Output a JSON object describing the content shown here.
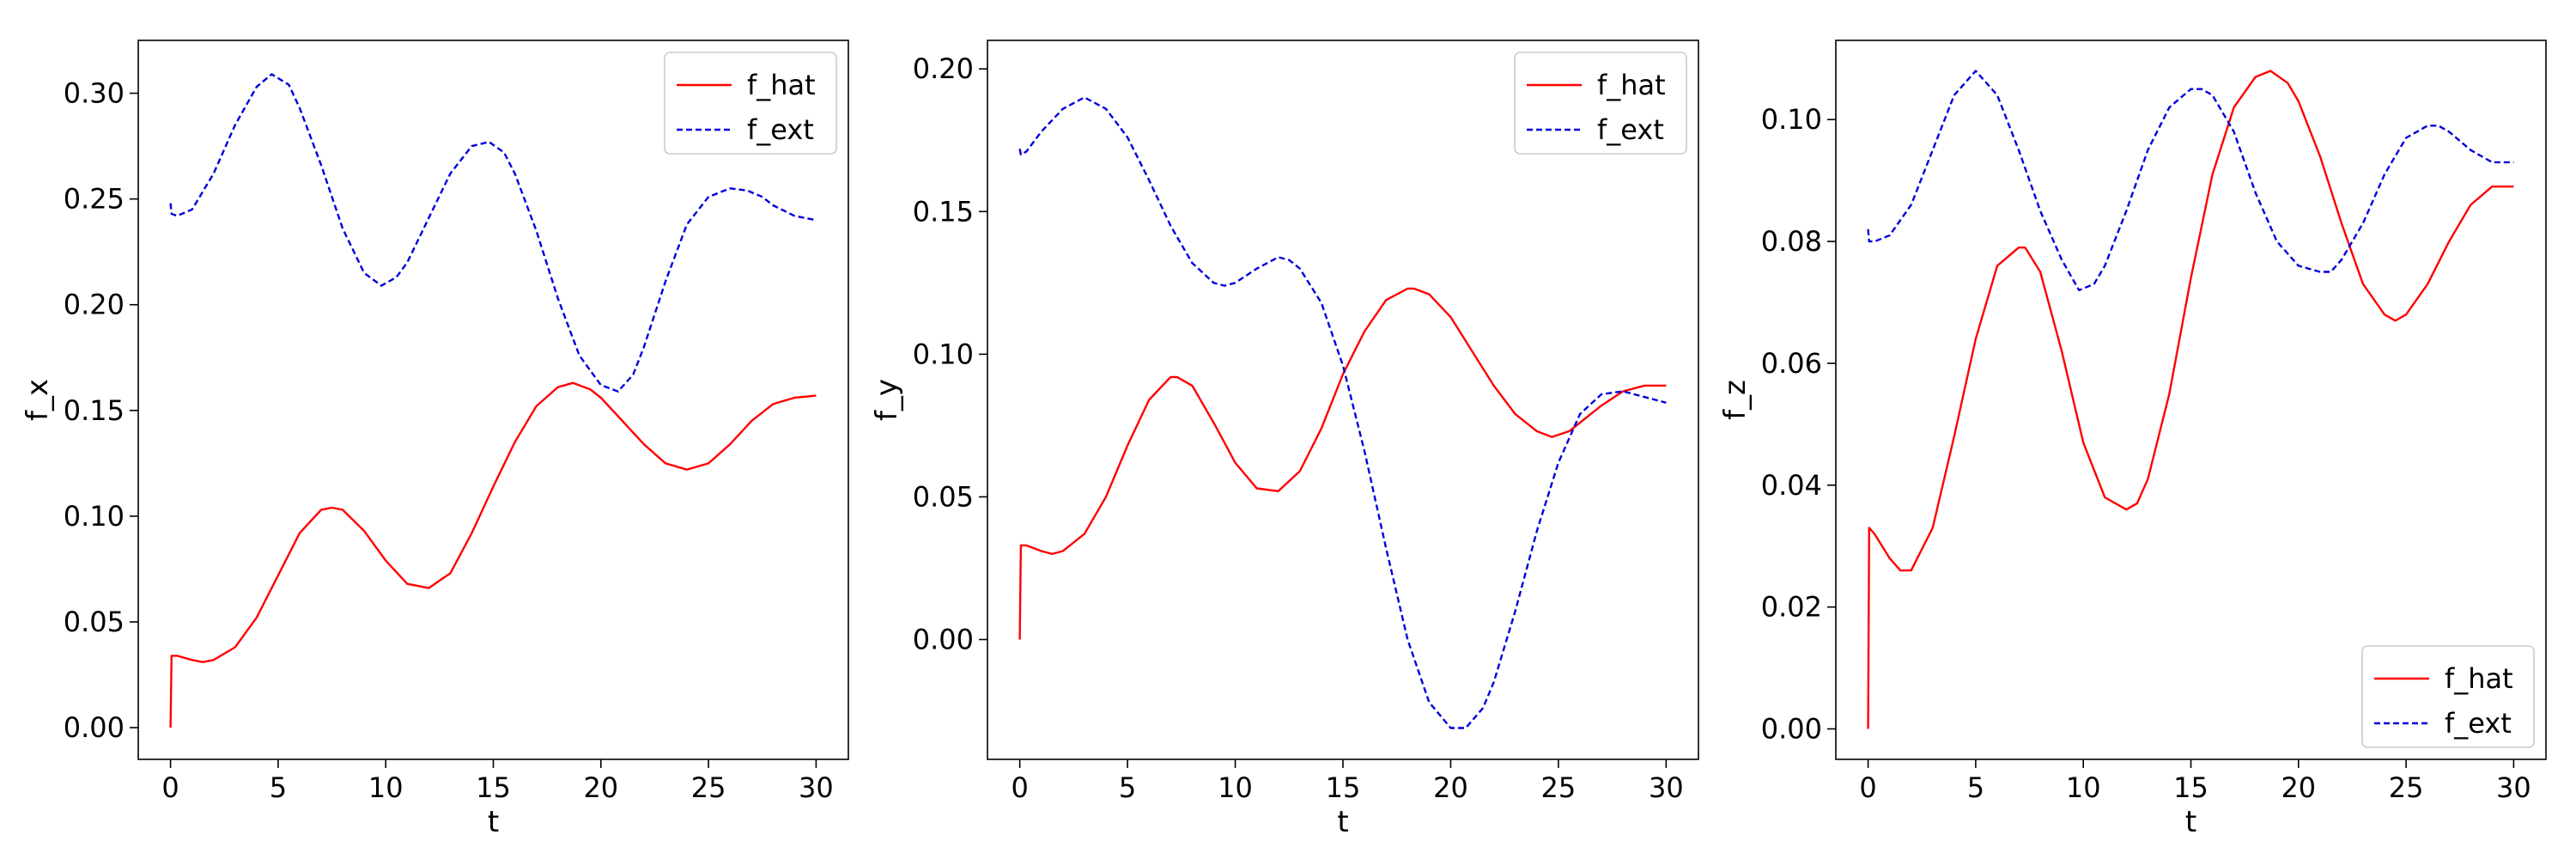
{
  "chart_data": [
    {
      "type": "line",
      "xlabel": "t",
      "ylabel": "f_x",
      "xlim": [
        -1.5,
        31.5
      ],
      "ylim": [
        -0.015,
        0.325
      ],
      "xticks": [
        0,
        5,
        10,
        15,
        20,
        25,
        30
      ],
      "yticks": [
        0.0,
        0.05,
        0.1,
        0.15,
        0.2,
        0.25,
        0.3
      ],
      "ytick_labels": [
        "0.00",
        "0.05",
        "0.10",
        "0.15",
        "0.20",
        "0.25",
        "0.30"
      ],
      "legend": {
        "position": "top-right"
      },
      "grid": false,
      "series": [
        {
          "name": "f_hat",
          "color": "#ff0000",
          "style": "solid",
          "x": [
            0,
            0.05,
            0.3,
            1,
            1.5,
            2,
            3,
            4,
            5,
            6,
            7,
            7.5,
            8,
            9,
            10,
            11,
            12,
            13,
            14,
            15,
            16,
            17,
            18,
            18.7,
            19.5,
            20,
            21,
            22,
            23,
            24,
            25,
            26,
            27,
            28,
            29,
            30
          ],
          "y": [
            0.0,
            0.034,
            0.034,
            0.032,
            0.031,
            0.032,
            0.038,
            0.052,
            0.072,
            0.092,
            0.103,
            0.104,
            0.103,
            0.093,
            0.079,
            0.068,
            0.066,
            0.073,
            0.092,
            0.114,
            0.135,
            0.152,
            0.161,
            0.163,
            0.16,
            0.156,
            0.145,
            0.134,
            0.125,
            0.122,
            0.125,
            0.134,
            0.145,
            0.153,
            0.156,
            0.157
          ]
        },
        {
          "name": "f_ext",
          "color": "#0000dd",
          "style": "dashed",
          "x": [
            0,
            0.05,
            0.3,
            1,
            2,
            3,
            4,
            4.7,
            5.5,
            6,
            7,
            8,
            9,
            9.8,
            10.5,
            11,
            12,
            13,
            14,
            14.8,
            15.5,
            16,
            17,
            18,
            19,
            20,
            20.8,
            21.5,
            22,
            23,
            24,
            25,
            26,
            26.8,
            27.5,
            28,
            29,
            30
          ],
          "y": [
            0.248,
            0.243,
            0.242,
            0.245,
            0.262,
            0.285,
            0.303,
            0.309,
            0.304,
            0.293,
            0.266,
            0.236,
            0.215,
            0.209,
            0.213,
            0.22,
            0.241,
            0.262,
            0.275,
            0.277,
            0.272,
            0.262,
            0.235,
            0.203,
            0.176,
            0.162,
            0.159,
            0.167,
            0.18,
            0.211,
            0.238,
            0.251,
            0.255,
            0.254,
            0.251,
            0.247,
            0.242,
            0.24
          ]
        }
      ]
    },
    {
      "type": "line",
      "xlabel": "t",
      "ylabel": "f_y",
      "xlim": [
        -1.5,
        31.5
      ],
      "ylim": [
        -0.042,
        0.21
      ],
      "xticks": [
        0,
        5,
        10,
        15,
        20,
        25,
        30
      ],
      "yticks": [
        0.0,
        0.05,
        0.1,
        0.15,
        0.2
      ],
      "ytick_labels": [
        "0.00",
        "0.05",
        "0.10",
        "0.15",
        "0.20"
      ],
      "legend": {
        "position": "top-right"
      },
      "grid": false,
      "series": [
        {
          "name": "f_hat",
          "color": "#ff0000",
          "style": "solid",
          "x": [
            0,
            0.05,
            0.3,
            1,
            1.5,
            2,
            3,
            4,
            5,
            6,
            7,
            7.3,
            8,
            9,
            10,
            11,
            12,
            13,
            14,
            15,
            16,
            17,
            18,
            18.3,
            19,
            20,
            21,
            22,
            23,
            24,
            24.7,
            25.5,
            26,
            27,
            28,
            29,
            30
          ],
          "y": [
            0.0,
            0.033,
            0.033,
            0.031,
            0.03,
            0.031,
            0.037,
            0.05,
            0.068,
            0.084,
            0.092,
            0.092,
            0.089,
            0.076,
            0.062,
            0.053,
            0.052,
            0.059,
            0.074,
            0.093,
            0.108,
            0.119,
            0.123,
            0.123,
            0.121,
            0.113,
            0.101,
            0.089,
            0.079,
            0.073,
            0.071,
            0.073,
            0.076,
            0.082,
            0.087,
            0.089,
            0.089
          ]
        },
        {
          "name": "f_ext",
          "color": "#0000dd",
          "style": "dashed",
          "x": [
            0,
            0.05,
            0.3,
            1,
            2,
            3,
            4,
            5,
            6,
            7,
            8,
            9,
            9.5,
            10,
            11,
            12,
            12.5,
            13,
            14,
            15,
            16,
            17,
            18,
            19,
            20,
            20.7,
            21.5,
            22,
            23,
            24,
            25,
            26,
            27,
            28,
            29,
            30
          ],
          "y": [
            0.172,
            0.17,
            0.171,
            0.178,
            0.186,
            0.19,
            0.186,
            0.176,
            0.161,
            0.145,
            0.132,
            0.125,
            0.124,
            0.125,
            0.13,
            0.134,
            0.133,
            0.13,
            0.118,
            0.096,
            0.066,
            0.032,
            0.0,
            -0.022,
            -0.031,
            -0.031,
            -0.024,
            -0.015,
            0.01,
            0.038,
            0.062,
            0.079,
            0.086,
            0.087,
            0.085,
            0.083
          ]
        }
      ]
    },
    {
      "type": "line",
      "xlabel": "t",
      "ylabel": "f_z",
      "xlim": [
        -1.5,
        31.5
      ],
      "ylim": [
        -0.005,
        0.113
      ],
      "xticks": [
        0,
        5,
        10,
        15,
        20,
        25,
        30
      ],
      "yticks": [
        0.0,
        0.02,
        0.04,
        0.06,
        0.08,
        0.1
      ],
      "ytick_labels": [
        "0.00",
        "0.02",
        "0.04",
        "0.06",
        "0.08",
        "0.10"
      ],
      "legend": {
        "position": "bottom-right"
      },
      "grid": false,
      "series": [
        {
          "name": "f_hat",
          "color": "#ff0000",
          "style": "solid",
          "x": [
            0,
            0.05,
            0.3,
            1,
            1.5,
            2,
            3,
            4,
            5,
            6,
            7,
            7.3,
            8,
            9,
            10,
            11,
            12,
            12.5,
            13,
            14,
            15,
            16,
            17,
            18,
            18.7,
            19.5,
            20,
            21,
            22,
            23,
            24,
            24.5,
            25,
            26,
            27,
            28,
            29,
            30
          ],
          "y": [
            0.0,
            0.033,
            0.032,
            0.028,
            0.026,
            0.026,
            0.033,
            0.048,
            0.064,
            0.076,
            0.079,
            0.079,
            0.075,
            0.062,
            0.047,
            0.038,
            0.036,
            0.037,
            0.041,
            0.055,
            0.074,
            0.091,
            0.102,
            0.107,
            0.108,
            0.106,
            0.103,
            0.094,
            0.083,
            0.073,
            0.068,
            0.067,
            0.068,
            0.073,
            0.08,
            0.086,
            0.089,
            0.089
          ]
        },
        {
          "name": "f_ext",
          "color": "#0000dd",
          "style": "dashed",
          "x": [
            0,
            0.05,
            0.3,
            1,
            2,
            3,
            4,
            5,
            6,
            7,
            8,
            9,
            9.8,
            10.5,
            11,
            12,
            13,
            14,
            15,
            15.5,
            16,
            17,
            18,
            19,
            20,
            21,
            21.5,
            22,
            23,
            24,
            25,
            26,
            26.5,
            27,
            28,
            29,
            30
          ],
          "y": [
            0.082,
            0.08,
            0.08,
            0.081,
            0.086,
            0.095,
            0.104,
            0.108,
            0.104,
            0.095,
            0.085,
            0.077,
            0.072,
            0.073,
            0.076,
            0.085,
            0.095,
            0.102,
            0.105,
            0.105,
            0.104,
            0.098,
            0.088,
            0.08,
            0.076,
            0.075,
            0.075,
            0.077,
            0.083,
            0.091,
            0.097,
            0.099,
            0.099,
            0.098,
            0.095,
            0.093,
            0.093
          ]
        }
      ]
    }
  ]
}
